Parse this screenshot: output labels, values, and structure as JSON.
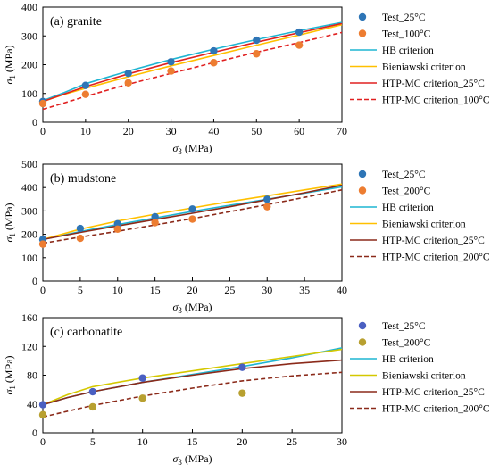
{
  "chart_data": [
    {
      "type": "line",
      "title": "(a) granite",
      "xlabel": "σ3 (MPa)",
      "ylabel": "σ1 (MPa)",
      "xlim": [
        0,
        70
      ],
      "ylim": [
        0,
        400
      ],
      "xticks": [
        0,
        10,
        20,
        30,
        40,
        50,
        60,
        70
      ],
      "yticks": [
        0,
        100,
        200,
        300,
        400
      ],
      "legend_position": "right",
      "series": [
        {
          "name": "Test_25°C",
          "kind": "marker",
          "color": "#2E75B6",
          "points": [
            [
              0,
              72
            ],
            [
              10,
              128
            ],
            [
              20,
              170
            ],
            [
              30,
              210
            ],
            [
              40,
              248
            ],
            [
              50,
              285
            ],
            [
              60,
              313
            ]
          ]
        },
        {
          "name": "Test_100°C",
          "kind": "marker",
          "color": "#ED7D31",
          "points": [
            [
              0,
              65
            ],
            [
              10,
              97
            ],
            [
              20,
              137
            ],
            [
              30,
              178
            ],
            [
              40,
              207
            ],
            [
              50,
              238
            ],
            [
              60,
              268
            ]
          ]
        },
        {
          "name": "HB criterion",
          "kind": "line",
          "style": "solid",
          "color": "#1FB5D2",
          "points": [
            [
              0,
              75
            ],
            [
              5,
              103
            ],
            [
              10,
              134
            ],
            [
              20,
              178
            ],
            [
              30,
              218
            ],
            [
              40,
              254
            ],
            [
              50,
              287
            ],
            [
              60,
              318
            ],
            [
              70,
              347
            ]
          ]
        },
        {
          "name": "Bieniawski criterion",
          "kind": "line",
          "style": "solid",
          "color": "#FFC000",
          "points": [
            [
              0,
              72
            ],
            [
              5,
              97
            ],
            [
              10,
              118
            ],
            [
              20,
              158
            ],
            [
              30,
              196
            ],
            [
              40,
              232
            ],
            [
              50,
              268
            ],
            [
              60,
              303
            ],
            [
              70,
              339
            ]
          ]
        },
        {
          "name": "HTP-MC criterion_25°C",
          "kind": "line",
          "style": "solid",
          "color": "#E02020",
          "points": [
            [
              0,
              72
            ],
            [
              5,
              98
            ],
            [
              10,
              124
            ],
            [
              20,
              168
            ],
            [
              30,
              207
            ],
            [
              40,
              243
            ],
            [
              50,
              278
            ],
            [
              60,
              311
            ],
            [
              70,
              343
            ]
          ]
        },
        {
          "name": "HTP-MC criterion_100°C",
          "kind": "line",
          "style": "dashed",
          "color": "#E02020",
          "points": [
            [
              0,
              45
            ],
            [
              5,
              67
            ],
            [
              10,
              90
            ],
            [
              20,
              132
            ],
            [
              30,
              170
            ],
            [
              40,
              207
            ],
            [
              50,
              243
            ],
            [
              60,
              277
            ],
            [
              70,
              312
            ]
          ]
        }
      ]
    },
    {
      "type": "line",
      "title": "(b) mudstone",
      "xlabel": "σ3 (MPa)",
      "ylabel": "σ1 (MPa)",
      "xlim": [
        0,
        40
      ],
      "ylim": [
        0,
        500
      ],
      "xticks": [
        0,
        5,
        10,
        15,
        20,
        25,
        30,
        35,
        40
      ],
      "yticks": [
        0,
        100,
        200,
        300,
        400,
        500
      ],
      "legend_position": "right",
      "series": [
        {
          "name": "Test_25°C",
          "kind": "marker",
          "color": "#2E75B6",
          "points": [
            [
              0,
              178
            ],
            [
              5,
              225
            ],
            [
              10,
              245
            ],
            [
              15,
              275
            ],
            [
              20,
              308
            ],
            [
              30,
              350
            ]
          ]
        },
        {
          "name": "Test_200°C",
          "kind": "marker",
          "color": "#ED7D31",
          "points": [
            [
              0,
              158
            ],
            [
              5,
              183
            ],
            [
              10,
              222
            ],
            [
              15,
              250
            ],
            [
              20,
              265
            ],
            [
              30,
              318
            ]
          ]
        },
        {
          "name": "HB criterion",
          "kind": "line",
          "style": "solid",
          "color": "#1FB5D2",
          "points": [
            [
              0,
              178
            ],
            [
              5,
              212
            ],
            [
              10,
              242
            ],
            [
              15,
              270
            ],
            [
              20,
              298
            ],
            [
              25,
              324
            ],
            [
              30,
              350
            ],
            [
              35,
              376
            ],
            [
              40,
              403
            ]
          ]
        },
        {
          "name": "Bieniawski criterion",
          "kind": "line",
          "style": "solid",
          "color": "#FFC000",
          "points": [
            [
              0,
              178
            ],
            [
              5,
              222
            ],
            [
              10,
              257
            ],
            [
              15,
              286
            ],
            [
              20,
              313
            ],
            [
              25,
              340
            ],
            [
              30,
              365
            ],
            [
              35,
              390
            ],
            [
              40,
              415
            ]
          ]
        },
        {
          "name": "HTP-MC criterion_25°C",
          "kind": "line",
          "style": "solid",
          "color": "#8B2A1A",
          "points": [
            [
              0,
              178
            ],
            [
              5,
              208
            ],
            [
              10,
              236
            ],
            [
              15,
              263
            ],
            [
              20,
              290
            ],
            [
              25,
              318
            ],
            [
              30,
              348
            ],
            [
              35,
              378
            ],
            [
              40,
              410
            ]
          ]
        },
        {
          "name": "HTP-MC criterion_200°C",
          "kind": "line",
          "style": "dashed",
          "color": "#8B2A1A",
          "points": [
            [
              0,
              162
            ],
            [
              5,
              188
            ],
            [
              10,
              213
            ],
            [
              15,
              240
            ],
            [
              20,
              267
            ],
            [
              25,
              297
            ],
            [
              30,
              327
            ],
            [
              35,
              358
            ],
            [
              40,
              390
            ]
          ]
        }
      ]
    },
    {
      "type": "line",
      "title": "(c) carbonatite",
      "xlabel": "σ3 (MPa)",
      "ylabel": "σ1 (MPa)",
      "xlim": [
        0,
        30
      ],
      "ylim": [
        0,
        160
      ],
      "xticks": [
        0,
        5,
        10,
        15,
        20,
        25,
        30
      ],
      "yticks": [
        0,
        40,
        80,
        120,
        160
      ],
      "legend_position": "right",
      "series": [
        {
          "name": "Test_25°C",
          "kind": "marker",
          "color": "#4A5FC1",
          "points": [
            [
              0,
              39
            ],
            [
              5,
              57
            ],
            [
              10,
              76
            ],
            [
              20,
              91
            ]
          ]
        },
        {
          "name": "Test_200°C",
          "kind": "marker",
          "color": "#B8A030",
          "points": [
            [
              0,
              25
            ],
            [
              5,
              36
            ],
            [
              10,
              48
            ],
            [
              20,
              55
            ]
          ]
        },
        {
          "name": "HB criterion",
          "kind": "line",
          "style": "solid",
          "color": "#1FB5D2",
          "points": [
            [
              0,
              39
            ],
            [
              2.5,
              49
            ],
            [
              5,
              57
            ],
            [
              10,
              70
            ],
            [
              15,
              81
            ],
            [
              20,
              92
            ],
            [
              25,
              104
            ],
            [
              30,
              118
            ]
          ]
        },
        {
          "name": "Bieniawski criterion",
          "kind": "line",
          "style": "solid",
          "color": "#D4C800",
          "points": [
            [
              0,
              39
            ],
            [
              2.5,
              53
            ],
            [
              5,
              64
            ],
            [
              10,
              76
            ],
            [
              15,
              86
            ],
            [
              20,
              96
            ],
            [
              25,
              106
            ],
            [
              30,
              116
            ]
          ]
        },
        {
          "name": "HTP-MC criterion_25°C",
          "kind": "line",
          "style": "solid",
          "color": "#8B2A1A",
          "points": [
            [
              0,
              39
            ],
            [
              2.5,
              49
            ],
            [
              5,
              57
            ],
            [
              10,
              70
            ],
            [
              15,
              80
            ],
            [
              20,
              89
            ],
            [
              25,
              96
            ],
            [
              30,
              101
            ]
          ]
        },
        {
          "name": "HTP-MC criterion_200°C",
          "kind": "line",
          "style": "dashed",
          "color": "#8B2A1A",
          "points": [
            [
              0,
              22
            ],
            [
              2.5,
              30
            ],
            [
              5,
              38
            ],
            [
              10,
              51
            ],
            [
              15,
              62
            ],
            [
              20,
              72
            ],
            [
              25,
              79
            ],
            [
              30,
              84
            ]
          ]
        }
      ]
    }
  ]
}
